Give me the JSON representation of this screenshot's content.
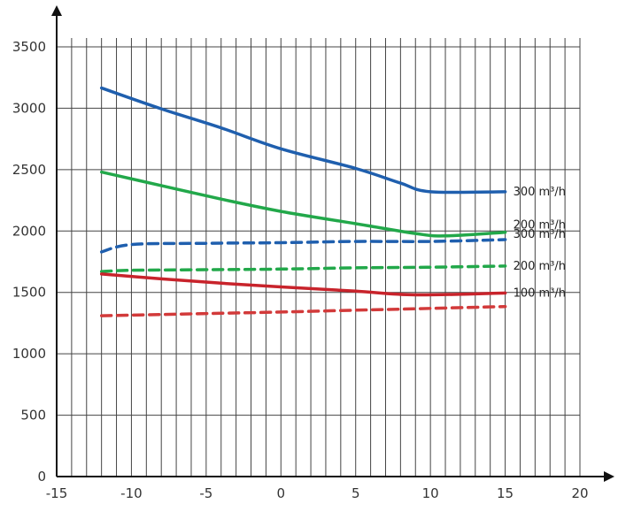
{
  "chart_data": {
    "type": "line",
    "title": "",
    "xlabel": "",
    "ylabel": "",
    "xlim": [
      -15,
      20
    ],
    "ylim": [
      0,
      3500
    ],
    "x_ticks": [
      -15,
      -10,
      -5,
      0,
      5,
      10,
      15,
      20
    ],
    "x_tick_labels": [
      "-15",
      "-10",
      "-5",
      "0",
      "5",
      "10",
      "15",
      "20"
    ],
    "y_ticks": [
      0,
      500,
      1000,
      1500,
      2000,
      2500,
      3000,
      3500
    ],
    "y_tick_labels": [
      "0",
      "500",
      "1000",
      "1500",
      "2000",
      "2500",
      "3000",
      "3500"
    ],
    "grid": true,
    "legend": "none",
    "series": [
      {
        "name": "300 m³/h",
        "color": "#1f5fae",
        "style": "solid",
        "x": [
          -12,
          -8,
          -4,
          0,
          5,
          8,
          10,
          15
        ],
        "y": [
          3165,
          2995,
          2840,
          2670,
          2510,
          2390,
          2320,
          2320
        ]
      },
      {
        "name": "200 m³/h",
        "color": "#22a84a",
        "style": "solid",
        "x": [
          -12,
          -8,
          -4,
          0,
          5,
          9,
          11,
          15
        ],
        "y": [
          2480,
          2370,
          2260,
          2160,
          2060,
          1980,
          1960,
          1990
        ]
      },
      {
        "name": "300 m³/h",
        "color": "#1f5fae",
        "style": "dashed",
        "x": [
          -12,
          -10,
          -5,
          0,
          5,
          10,
          15
        ],
        "y": [
          1830,
          1890,
          1900,
          1905,
          1915,
          1915,
          1930
        ]
      },
      {
        "name": "200 m³/h",
        "color": "#22a84a",
        "style": "dashed",
        "x": [
          -12,
          -10,
          -5,
          0,
          5,
          10,
          15
        ],
        "y": [
          1670,
          1680,
          1685,
          1690,
          1700,
          1705,
          1715
        ]
      },
      {
        "name": "100 m³/h",
        "color": "#c8232b",
        "style": "solid",
        "x": [
          -12,
          -8,
          -4,
          0,
          5,
          9,
          15
        ],
        "y": [
          1650,
          1610,
          1575,
          1545,
          1510,
          1480,
          1495
        ]
      },
      {
        "name": "",
        "color": "#d23a3a",
        "style": "dashed",
        "x": [
          -12,
          -8,
          -4,
          0,
          5,
          10,
          15
        ],
        "y": [
          1310,
          1320,
          1330,
          1340,
          1355,
          1370,
          1385
        ]
      }
    ]
  }
}
